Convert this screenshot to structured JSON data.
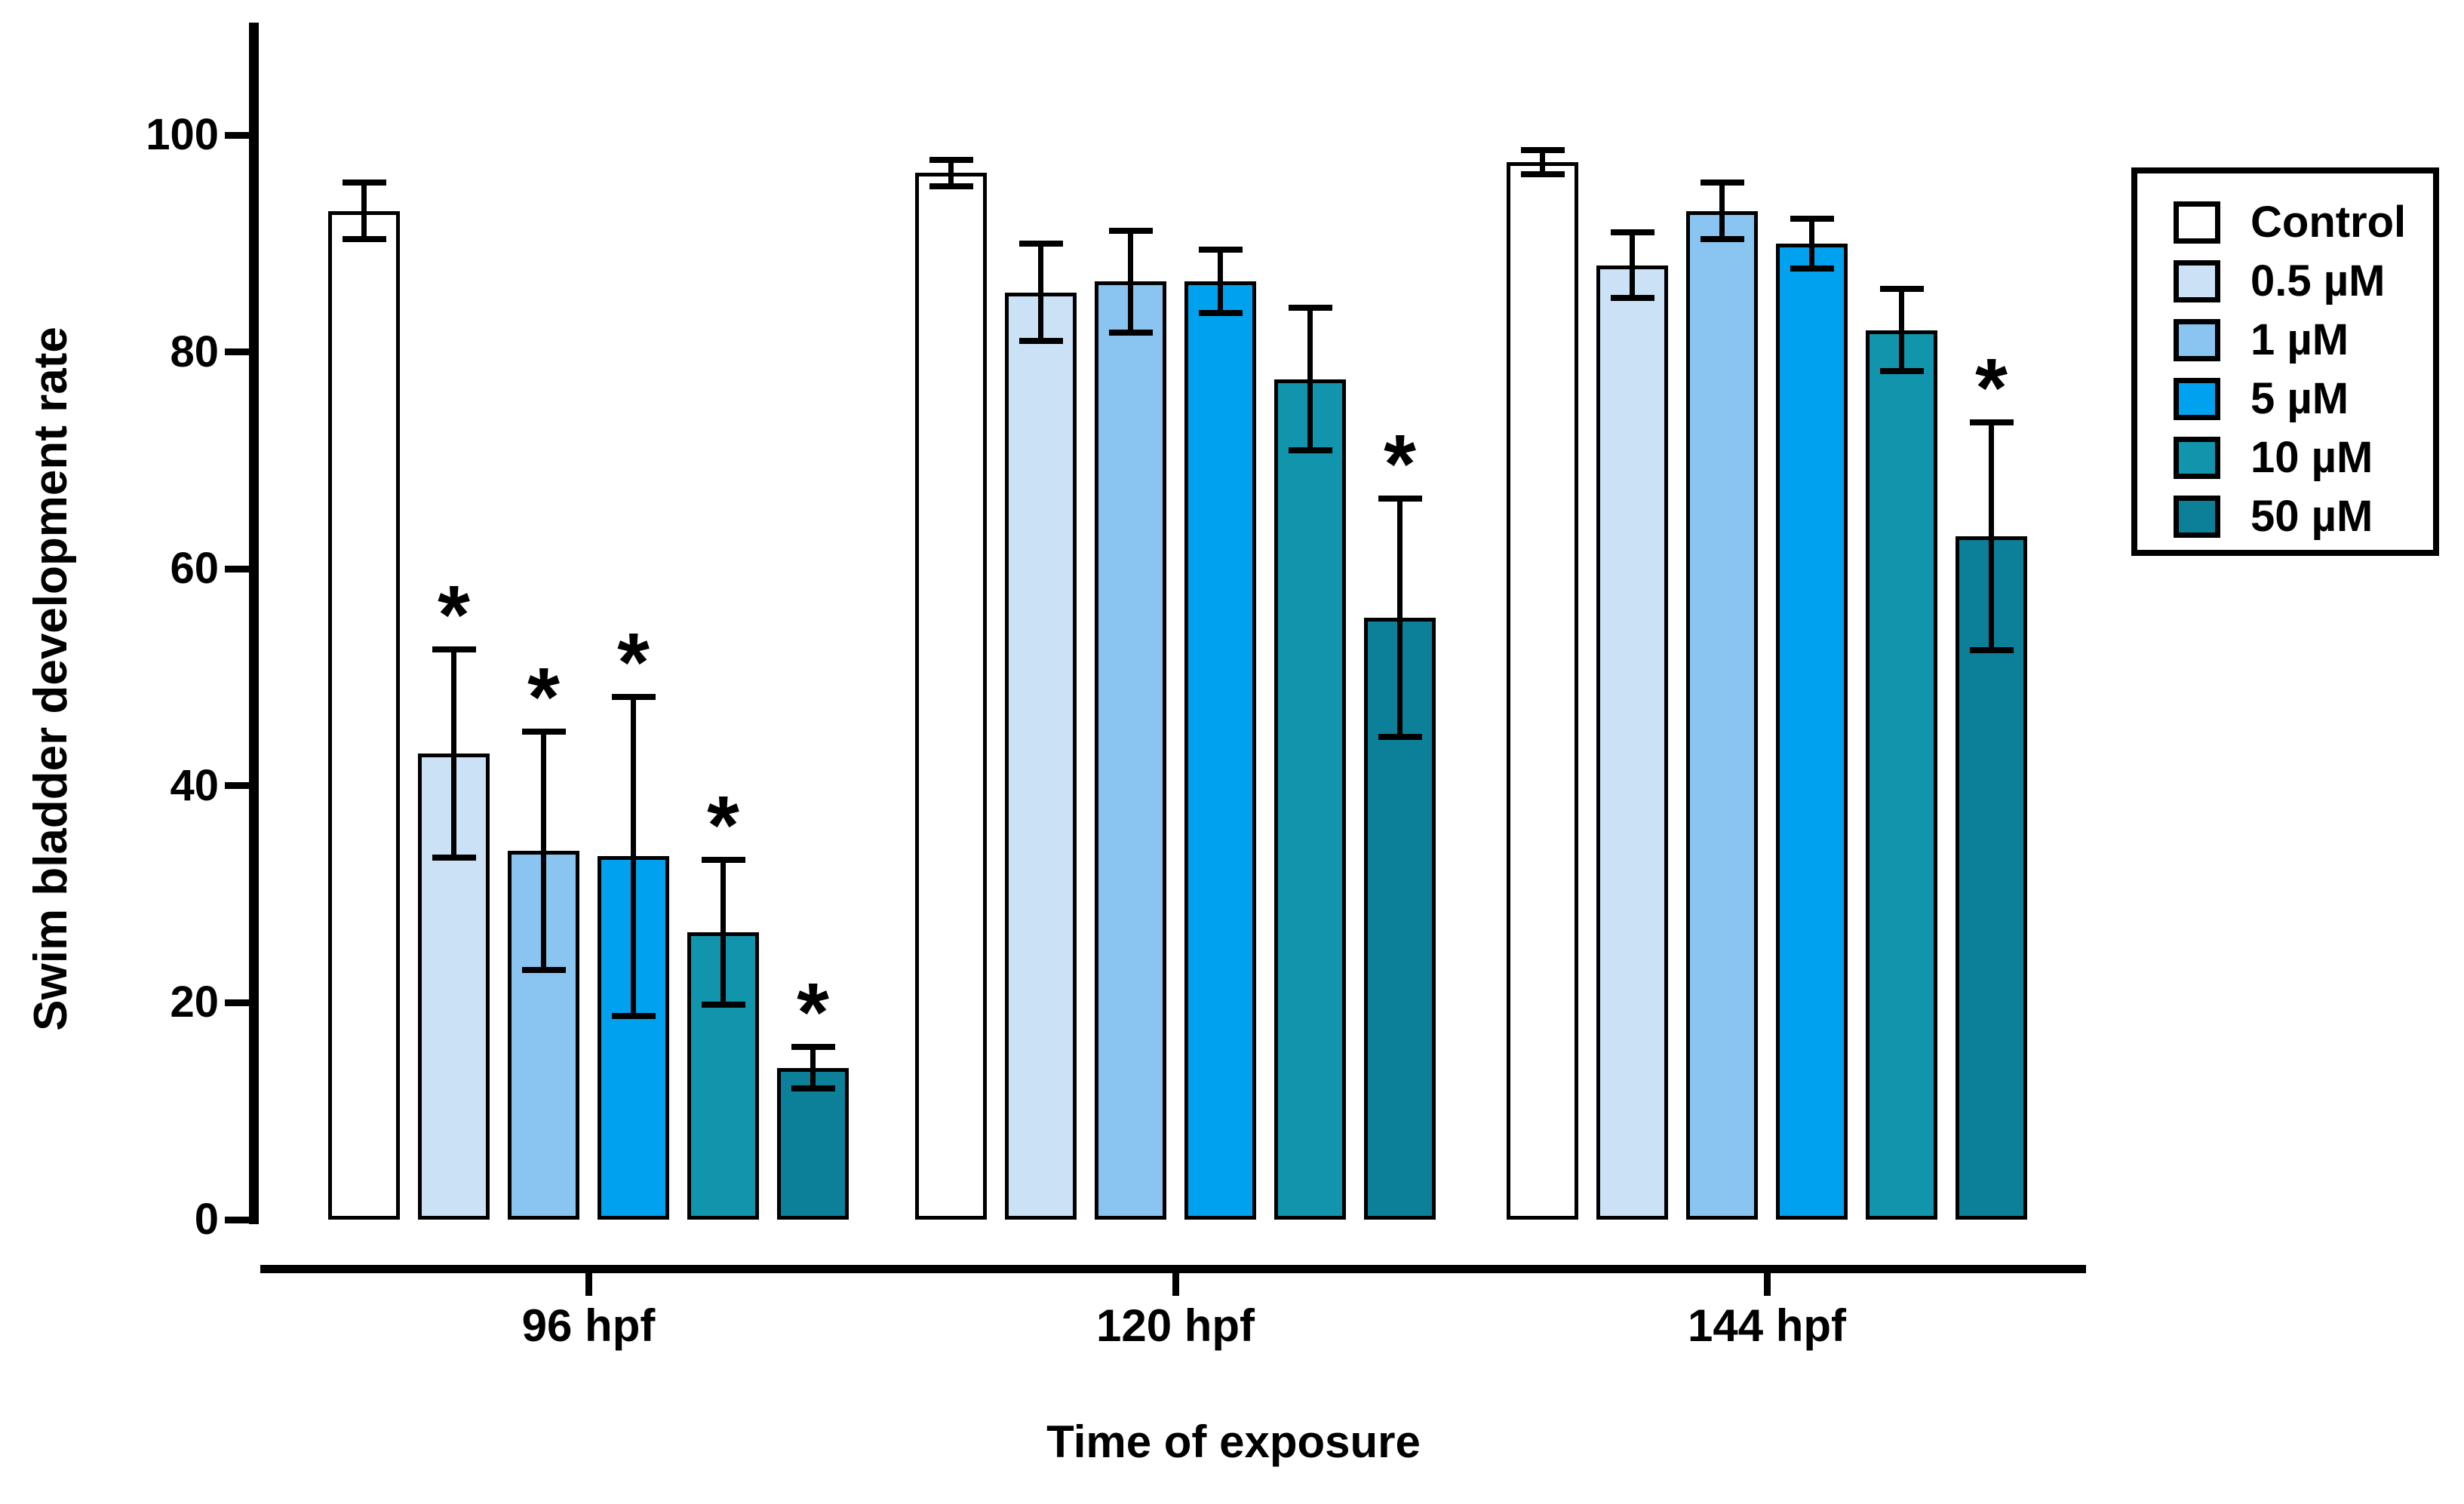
{
  "figure": {
    "background": "#ffffff",
    "axis_color": "#000000"
  },
  "chart_data": {
    "type": "bar",
    "title": "",
    "xlabel": "Time of exposure",
    "ylabel": "Swim bladder development rate",
    "ylim": [
      0,
      100
    ],
    "yticks": [
      0,
      20,
      40,
      60,
      80,
      100
    ],
    "grid": false,
    "legend_position": "right",
    "significance_marker": "*",
    "error_bars": "plus-minus, capped",
    "categories": [
      "96 hpf",
      "120 hpf",
      "144 hpf"
    ],
    "series": [
      {
        "name": "Control",
        "color": "#ffffff",
        "values": [
          93,
          96.5,
          97.5
        ],
        "errors": [
          2.6,
          1.2,
          1.1
        ],
        "significant": [
          false,
          false,
          false
        ]
      },
      {
        "name": "0.5 µM",
        "color": "#cbe2f6",
        "values": [
          43,
          85.5,
          88
        ],
        "errors": [
          9.6,
          4.5,
          3.0
        ],
        "significant": [
          true,
          false,
          false
        ]
      },
      {
        "name": "1 µM",
        "color": "#8ac4f0",
        "values": [
          34,
          86.5,
          93
        ],
        "errors": [
          11.0,
          4.7,
          2.6
        ],
        "significant": [
          true,
          false,
          false
        ]
      },
      {
        "name": "5 µM",
        "color": "#00a2ef",
        "values": [
          33.5,
          86.5,
          90
        ],
        "errors": [
          14.7,
          2.9,
          2.3
        ],
        "significant": [
          true,
          false,
          false
        ]
      },
      {
        "name": "10 µM",
        "color": "#1095ac",
        "values": [
          26.5,
          77.5,
          82
        ],
        "errors": [
          6.7,
          6.6,
          3.8
        ],
        "significant": [
          true,
          false,
          false
        ]
      },
      {
        "name": "50 µM",
        "color": "#0d8099",
        "values": [
          14,
          55.5,
          63
        ],
        "errors": [
          1.9,
          11.0,
          10.5
        ],
        "significant": [
          true,
          true,
          true
        ]
      }
    ]
  }
}
